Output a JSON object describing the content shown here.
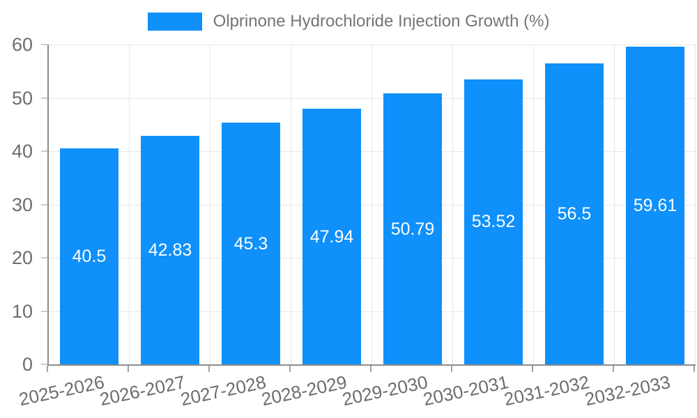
{
  "colors": {
    "bar": "#0f90fa",
    "grid": "#e6e6e6",
    "axis": "#8c8c8c",
    "tick_text": "#6d6d6d",
    "legend_text": "#757575",
    "bar_label_text": "#ffffff"
  },
  "legend": {
    "label": "Olprinone Hydrochloride Injection Growth (%)",
    "position": "top-center",
    "marker": "rectangle"
  },
  "chart_data": {
    "type": "bar",
    "title": "Olprinone Hydrochloride Injection Growth (%)",
    "categories": [
      "2025-2026",
      "2026-2027",
      "2027-2028",
      "2028-2029",
      "2029-2030",
      "2030-2031",
      "2031-2032",
      "2032-2033"
    ],
    "values": [
      40.5,
      42.83,
      45.3,
      47.94,
      50.79,
      53.52,
      56.5,
      59.61
    ],
    "xlabel": "",
    "ylabel": "",
    "ylim": [
      0,
      60
    ],
    "yticks": [
      0,
      10,
      20,
      30,
      40,
      50,
      60
    ],
    "grid": true,
    "x_label_rotation_deg": -12,
    "bar_value_labels": "inside-center-white",
    "legend_position": "top-center"
  }
}
